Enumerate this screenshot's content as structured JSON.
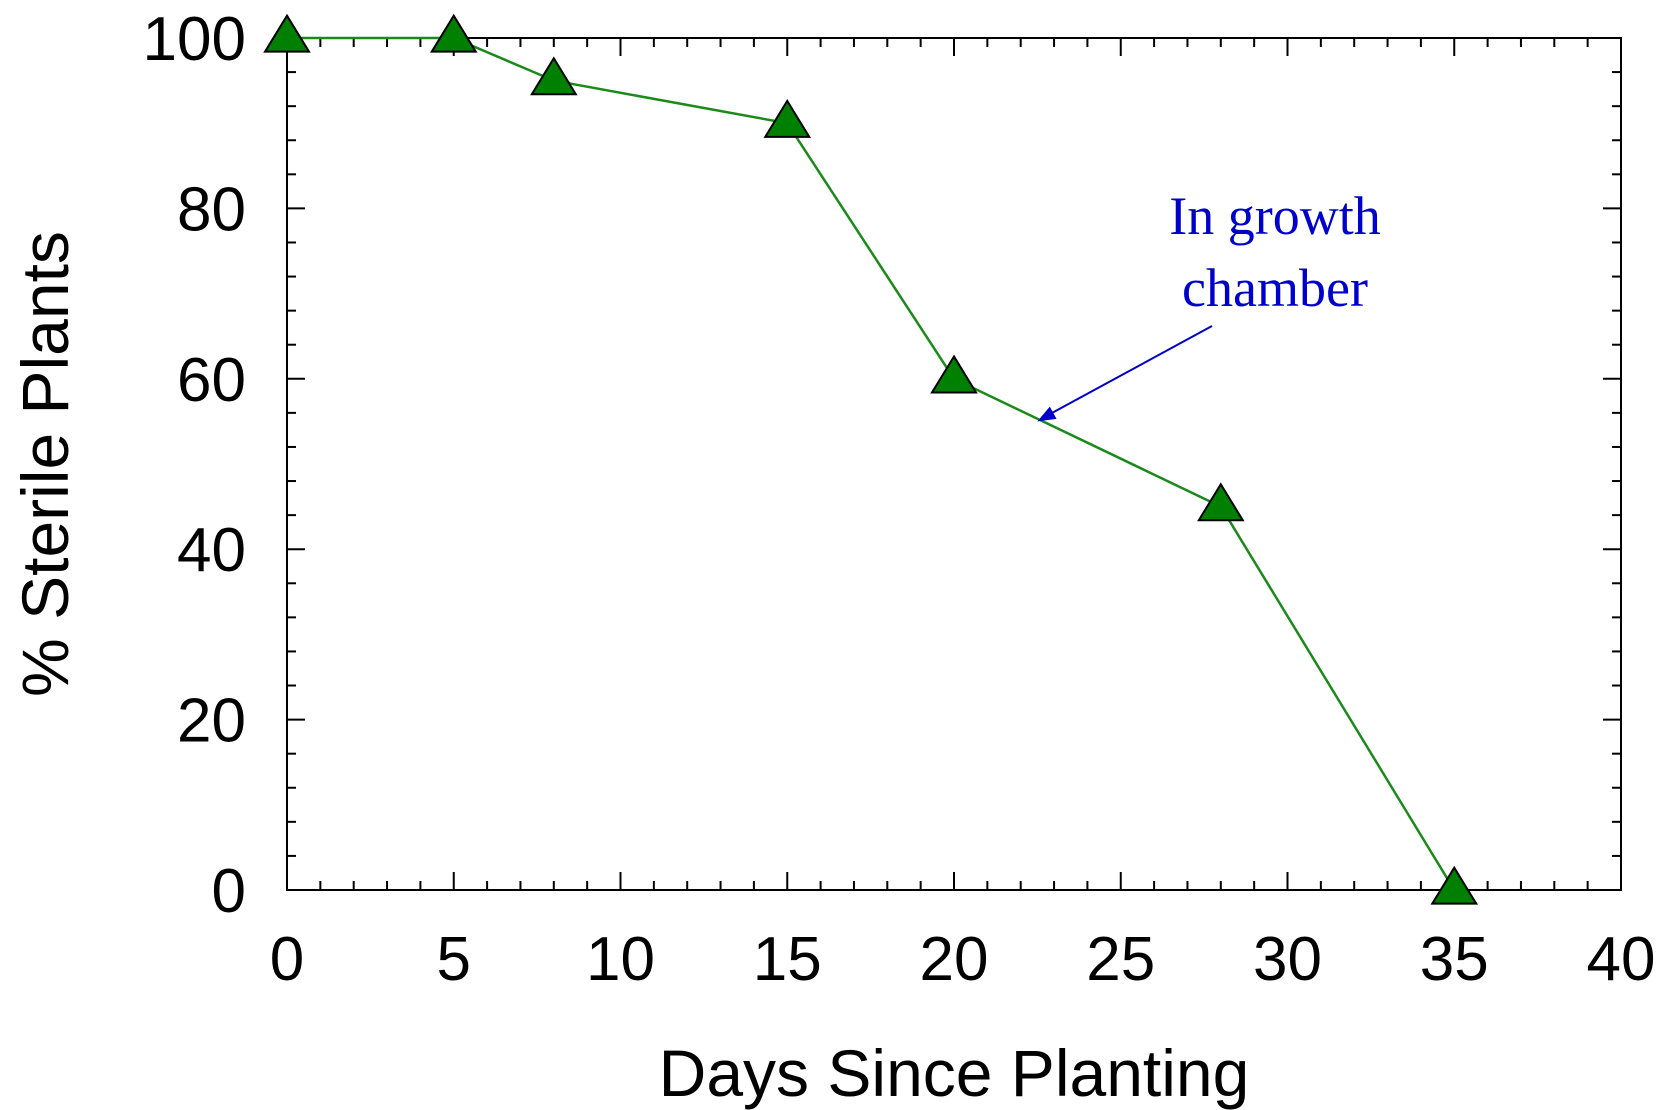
{
  "chart_data": {
    "type": "line",
    "title": "",
    "xlabel": "Days Since Planting",
    "ylabel": "% Sterile Plants",
    "xlim": [
      0,
      40
    ],
    "ylim": [
      0,
      100
    ],
    "x_ticks": [
      0,
      5,
      10,
      15,
      20,
      25,
      30,
      35,
      40
    ],
    "y_ticks": [
      0,
      20,
      40,
      60,
      80,
      100
    ],
    "x_tick_labels": [
      "0",
      "5",
      "10",
      "15",
      "20",
      "25",
      "30",
      "35",
      "40"
    ],
    "y_tick_labels": [
      "0",
      "20",
      "40",
      "60",
      "80",
      "100"
    ],
    "x_minor_step": 1,
    "y_minor_step": 4,
    "grid": false,
    "legend": "none",
    "series": [
      {
        "x": [
          0,
          5,
          8,
          15,
          20,
          28,
          35
        ],
        "y": [
          100,
          100,
          95,
          90,
          60,
          45,
          0
        ],
        "marker": "triangle-up",
        "color": "#008000",
        "line_color": "#1a8a1a"
      }
    ],
    "annotations": [
      {
        "lines": [
          "In growth",
          "chamber"
        ],
        "color": "#0000cc",
        "arrow_to": {
          "x": 22.5,
          "y": 55
        }
      }
    ]
  }
}
